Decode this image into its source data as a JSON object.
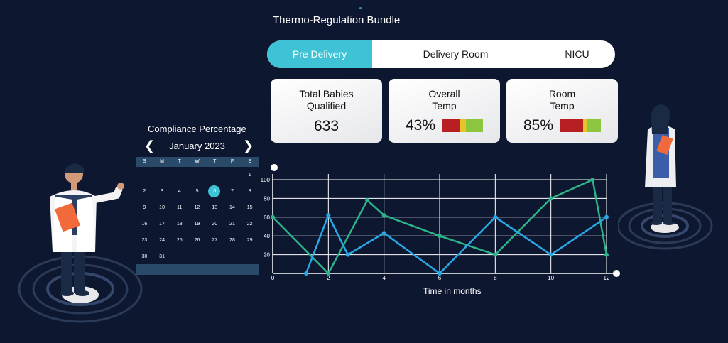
{
  "header": {
    "title": "Thermo-Regulation Bundle"
  },
  "tabs": [
    {
      "label": "Pre Delivery",
      "active": true
    },
    {
      "label": "Delivery Room",
      "active": false
    },
    {
      "label": "NICU",
      "active": false
    }
  ],
  "cards": [
    {
      "title_line1": "Total Babies",
      "title_line2": "Qualified",
      "value": "633"
    },
    {
      "title_line1": "Overall",
      "title_line2": "Temp",
      "value": "43%",
      "scale_colors": [
        "#b81f22",
        "#e4c52a",
        "#8cc63e"
      ]
    },
    {
      "title_line1": "Room",
      "title_line2": "Temp",
      "value": "85%",
      "scale_colors": [
        "#b81f22",
        "#e4c52a",
        "#8cc63e"
      ]
    }
  ],
  "calendar": {
    "title": "Compliance Percentage",
    "month": "January 2023",
    "weekdays": [
      "S",
      "M",
      "T",
      "W",
      "T",
      "F",
      "S"
    ],
    "selected_day": "6",
    "weeks": [
      [
        "",
        "",
        "",
        "",
        "",
        "",
        "1"
      ],
      [
        "2",
        "3",
        "4",
        "5",
        "6",
        "7",
        "8"
      ],
      [
        "9",
        "10",
        "11",
        "12",
        "13",
        "14",
        "15"
      ],
      [
        "16",
        "17",
        "18",
        "19",
        "20",
        "21",
        "22"
      ],
      [
        "23",
        "24",
        "25",
        "26",
        "27",
        "28",
        "29"
      ],
      [
        "30",
        "31",
        "",
        "",
        "",
        "",
        ""
      ]
    ]
  },
  "colors": {
    "accent": "#3ec3d6",
    "background": "#0d1730",
    "series_green": "#2db48a",
    "series_blue": "#29a8e6"
  },
  "chart_data": {
    "type": "line",
    "xlabel": "Time in months",
    "ylabel": "",
    "xlim": [
      0,
      12
    ],
    "ylim": [
      0,
      100
    ],
    "x_ticks": [
      "0",
      "2",
      "4",
      "6",
      "8",
      "10",
      "12"
    ],
    "y_ticks": [
      "20",
      "40",
      "60",
      "80",
      "100"
    ],
    "grid": true,
    "series": [
      {
        "color": "#2db48a",
        "x": [
          0,
          2,
          3.4,
          4,
          6,
          8,
          10,
          11.5,
          12
        ],
        "y": [
          60,
          0,
          78,
          62,
          40,
          20,
          80,
          100,
          20
        ]
      },
      {
        "color": "#29a8e6",
        "x": [
          1.2,
          2,
          2.7,
          4,
          6,
          8,
          10,
          12
        ],
        "y": [
          0,
          62,
          20,
          43,
          0,
          60,
          20,
          60
        ]
      }
    ]
  }
}
